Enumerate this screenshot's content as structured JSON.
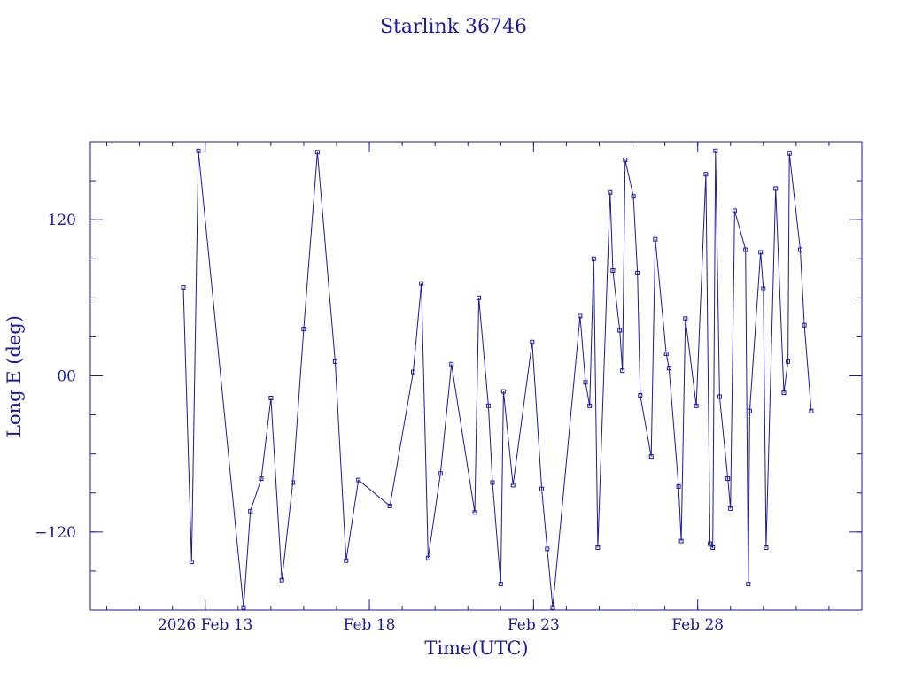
{
  "chart_data": {
    "type": "line",
    "title": "Starlink 36746",
    "xlabel": "Time(UTC)",
    "ylabel": "Long E (deg)",
    "x_ticks": [
      {
        "date": "2026-02-13",
        "label": "2026 Feb 13"
      },
      {
        "date": "2026-02-18",
        "label": "Feb 18"
      },
      {
        "date": "2026-02-23",
        "label": "Feb 23"
      },
      {
        "date": "2026-02-28",
        "label": "Feb 28"
      }
    ],
    "y_ticks": [
      {
        "value": 120,
        "label": "120"
      },
      {
        "value": 0,
        "label": "00"
      },
      {
        "value": -120,
        "label": "−120"
      }
    ],
    "xlim": [
      "2026-02-09T12:00",
      "2026-03-05T00:00"
    ],
    "ylim": [
      -180,
      180
    ],
    "color": "#1a1a9c",
    "grid": false,
    "series": [
      {
        "values": [
          [
            "2026-02-12T08:00",
            68
          ],
          [
            "2026-02-12T14:00",
            -143
          ],
          [
            "2026-02-12T19:00",
            173
          ],
          [
            "2026-02-14T04:00",
            -178
          ],
          [
            "2026-02-14T09:00",
            -104
          ],
          [
            "2026-02-14T17:00",
            -79
          ],
          [
            "2026-02-15T00:00",
            -17
          ],
          [
            "2026-02-15T08:00",
            -157
          ],
          [
            "2026-02-15T16:00",
            -82
          ],
          [
            "2026-02-16T00:00",
            36
          ],
          [
            "2026-02-16T10:00",
            172
          ],
          [
            "2026-02-16T23:00",
            11
          ],
          [
            "2026-02-17T07:00",
            -142
          ],
          [
            "2026-02-17T16:00",
            -80
          ],
          [
            "2026-02-18T15:00",
            -100
          ],
          [
            "2026-02-19T08:00",
            3
          ],
          [
            "2026-02-19T14:00",
            71
          ],
          [
            "2026-02-19T19:00",
            -140
          ],
          [
            "2026-02-20T04:00",
            -75
          ],
          [
            "2026-02-20T12:00",
            9
          ],
          [
            "2026-02-21T05:00",
            -105
          ],
          [
            "2026-02-21T08:00",
            60
          ],
          [
            "2026-02-21T15:00",
            -23
          ],
          [
            "2026-02-21T18:00",
            -82
          ],
          [
            "2026-02-22T00:00",
            -160
          ],
          [
            "2026-02-22T02:00",
            -12
          ],
          [
            "2026-02-22T09:00",
            -84
          ],
          [
            "2026-02-22T23:00",
            26
          ],
          [
            "2026-02-23T06:00",
            -87
          ],
          [
            "2026-02-23T10:00",
            -133
          ],
          [
            "2026-02-23T14:00",
            -178
          ],
          [
            "2026-02-24T10:00",
            46
          ],
          [
            "2026-02-24T14:00",
            -5
          ],
          [
            "2026-02-24T17:00",
            -23
          ],
          [
            "2026-02-24T20:00",
            90
          ],
          [
            "2026-02-24T23:00",
            -132
          ],
          [
            "2026-02-25T08:00",
            141
          ],
          [
            "2026-02-25T10:00",
            81
          ],
          [
            "2026-02-25T15:00",
            35
          ],
          [
            "2026-02-25T17:00",
            4
          ],
          [
            "2026-02-25T19:00",
            166
          ],
          [
            "2026-02-26T01:00",
            138
          ],
          [
            "2026-02-26T04:00",
            79
          ],
          [
            "2026-02-26T06:00",
            -15
          ],
          [
            "2026-02-26T14:00",
            -62
          ],
          [
            "2026-02-26T17:00",
            105
          ],
          [
            "2026-02-27T01:00",
            17
          ],
          [
            "2026-02-27T03:00",
            6
          ],
          [
            "2026-02-27T10:00",
            -85
          ],
          [
            "2026-02-27T12:00",
            -127
          ],
          [
            "2026-02-27T15:00",
            44
          ],
          [
            "2026-02-27T23:00",
            -23
          ],
          [
            "2026-02-28T06:00",
            155
          ],
          [
            "2026-02-28T09:00",
            -129
          ],
          [
            "2026-02-28T11:00",
            -132
          ],
          [
            "2026-02-28T13:00",
            173
          ],
          [
            "2026-02-28T16:00",
            -16
          ],
          [
            "2026-02-28T22:00",
            -79
          ],
          [
            "2026-03-01T00:00",
            -102
          ],
          [
            "2026-03-01T03:00",
            127
          ],
          [
            "2026-03-01T11:00",
            97
          ],
          [
            "2026-03-01T13:00",
            -160
          ],
          [
            "2026-03-01T14:00",
            -27
          ],
          [
            "2026-03-01T22:00",
            95
          ],
          [
            "2026-03-02T00:00",
            67
          ],
          [
            "2026-03-02T02:00",
            -132
          ],
          [
            "2026-03-02T09:00",
            144
          ],
          [
            "2026-03-02T15:00",
            -13
          ],
          [
            "2026-03-02T18:00",
            11
          ],
          [
            "2026-03-02T19:00",
            171
          ],
          [
            "2026-03-03T03:00",
            97
          ],
          [
            "2026-03-03T06:00",
            39
          ],
          [
            "2026-03-03T11:00",
            -27
          ]
        ]
      }
    ]
  }
}
